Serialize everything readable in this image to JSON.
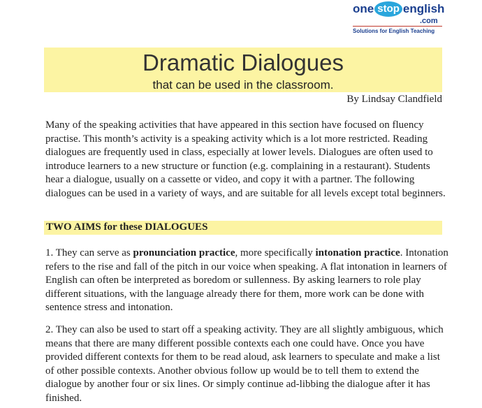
{
  "logo": {
    "one": "one",
    "stop": "stop",
    "english": "english",
    "com": ".com",
    "tagline": "Solutions for English Teaching"
  },
  "header": {
    "title": "Dramatic Dialogues",
    "subtitle": "that can be used in the classroom.",
    "byline": "By Lindsay Clandfield"
  },
  "intro": "Many of the speaking activities that have appeared in this section have focused on fluency practise. This month’s activity is a speaking activity which is a lot more restricted. Reading dialogues are frequently used in class, especially at lower levels. Dialogues are often used to introduce learners to a new structure or function (e.g. complaining in a restaurant). Students hear a dialogue, usually on a cassette or video, and copy it with a partner. The following dialogues can be used in a variety of ways, and are suitable for all levels except total beginners.",
  "section_heading": "TWO AIMS for these DIALOGUES",
  "aim1": {
    "lead": "1. They can serve as ",
    "bold1": "pronunciation practice",
    "mid": ", more specifically ",
    "bold2": "intonation practice",
    "rest": ". Intonation refers to the rise and fall of the pitch in our voice when speaking. A flat intonation in learners of English can often be interpreted as boredom or sullenness. By asking learners to role play different situations, with the language already there for them, more work can be done with sentence stress and intonation."
  },
  "aim2": "2. They can also be used to start off a speaking activity. They are all slightly ambiguous, which means that there are many different possible contexts each one could have. Once you have provided different contexts for them to be read aloud, ask learners to speculate and make a list of other possible contexts. Another obvious follow up would be to tell them to extend the dialogue by another four or six lines. Or simply continue ad-libbing the dialogue after it has finished.",
  "colors": {
    "highlight": "#fcf4a3",
    "logo_blue": "#1b3f8f",
    "logo_cyan": "#2aa6dc",
    "logo_rule": "#c0392b"
  }
}
